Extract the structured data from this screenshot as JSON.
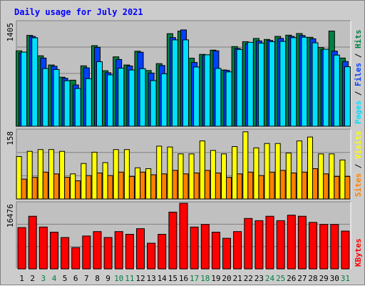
{
  "chart_data": {
    "type": "bar",
    "title": "Daily usage for July 2021",
    "categories": [
      "1",
      "2",
      "3",
      "4",
      "5",
      "6",
      "7",
      "8",
      "9",
      "10",
      "11",
      "12",
      "13",
      "14",
      "15",
      "16",
      "17",
      "18",
      "19",
      "20",
      "21",
      "22",
      "23",
      "24",
      "25",
      "26",
      "27",
      "28",
      "29",
      "30",
      "31"
    ],
    "weekend_days": [
      "3",
      "4",
      "10",
      "11",
      "17",
      "18",
      "24",
      "25",
      "31"
    ],
    "colors": {
      "hits": "#008040",
      "files": "#0040ff",
      "pages": "#00e0ff",
      "visits": "#ffff00",
      "sites": "#ff8000",
      "kbytes": "#ff0000",
      "weekday_label": "#000000",
      "weekend_label": "#008040"
    },
    "panels": [
      {
        "id": "top",
        "ymax_label": "1405",
        "ylim": [
          0,
          1405
        ],
        "right_label_parts": [
          {
            "text": "Pages",
            "color": "#00e0ff"
          },
          {
            "text": " / ",
            "color": "#000000"
          },
          {
            "text": "Files",
            "color": "#0040ff"
          },
          {
            "text": " / ",
            "color": "#000000"
          },
          {
            "text": "Hits",
            "color": "#008040"
          }
        ],
        "series": [
          {
            "name": "Hits",
            "color": "#008040",
            "values": [
              1017,
              1226,
              951,
              827,
              662,
              622,
              815,
              1087,
              749,
              936,
              827,
              1012,
              752,
              845,
              1249,
              1284,
              918,
              970,
              1027,
              759,
              1075,
              1141,
              1185,
              1171,
              1213,
              1229,
              1251,
              1200,
              1061,
              1285,
              920
            ]
          },
          {
            "name": "Files",
            "color": "#0040ff",
            "values": [
              988,
              1212,
              920,
              809,
              647,
              557,
              788,
              1065,
              722,
              901,
              813,
              998,
              718,
              820,
              1196,
              1300,
              860,
              954,
              1017,
              754,
              1050,
              1114,
              1151,
              1159,
              1185,
              1213,
              1224,
              1180,
              1034,
              1013,
              874
            ]
          },
          {
            "name": "Pages",
            "color": "#00e0ff",
            "values": [
              1001,
              1193,
              779,
              766,
              614,
              509,
              642,
              871,
              694,
              783,
              759,
              778,
              616,
              708,
              1165,
              1165,
              800,
              964,
              780,
              733,
              1036,
              1133,
              1122,
              1141,
              1145,
              1195,
              1201,
              1126,
              1039,
              960,
              803
            ]
          }
        ]
      },
      {
        "id": "middle",
        "ymax_label": "158",
        "ylim": [
          0,
          158
        ],
        "right_label_parts": [
          {
            "text": "Sites",
            "color": "#ff8000"
          },
          {
            "text": " / ",
            "color": "#000000"
          },
          {
            "text": "Visits",
            "color": "#ffff00"
          }
        ],
        "series": [
          {
            "name": "Visits",
            "color": "#ffff00",
            "values": [
              98,
              110,
              114,
              114,
              110,
              58,
              82,
              108,
              84,
              114,
              114,
              72,
              70,
              122,
              120,
              104,
              104,
              134,
              112,
              104,
              121,
              155,
              118,
              128,
              128,
              106,
              134,
              143,
              104,
              104,
              90
            ]
          },
          {
            "name": "Sites",
            "color": "#ff8000",
            "values": [
              46,
              50,
              62,
              58,
              50,
              42,
              54,
              60,
              54,
              62,
              52,
              62,
              56,
              58,
              66,
              58,
              60,
              66,
              60,
              50,
              58,
              62,
              54,
              62,
              66,
              60,
              62,
              70,
              58,
              52,
              52
            ]
          }
        ]
      },
      {
        "id": "bottom",
        "ymax_label": "16476",
        "ylim": [
          0,
          16476
        ],
        "right_label_parts": [
          {
            "text": "KBytes",
            "color": "#ff0000"
          }
        ],
        "series": [
          {
            "name": "KBytes",
            "color": "#ff0000",
            "values": [
              10370,
              13208,
              10508,
              9230,
              7872,
              5334,
              8262,
              9368,
              7872,
              9368,
              8690,
              10108,
              6442,
              8690,
              14264,
              16476,
              10508,
              11156,
              9230,
              7678,
              9368,
              12654,
              12098,
              13208,
              12098,
              13480,
              13208,
              11672,
              11156,
              11156,
              9500
            ]
          }
        ]
      }
    ]
  }
}
